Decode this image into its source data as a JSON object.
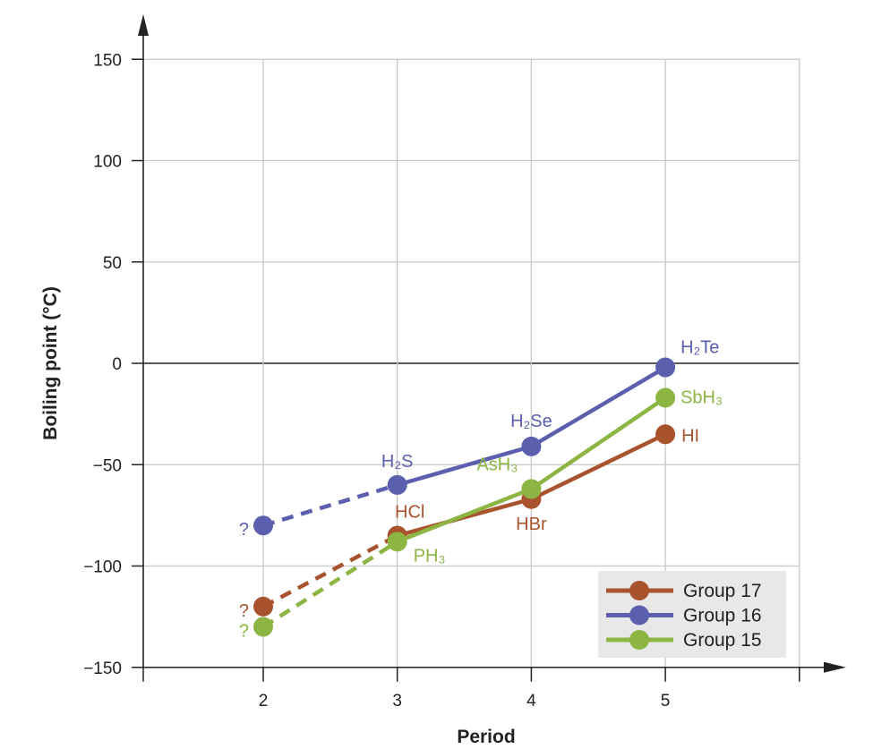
{
  "chart_data": {
    "type": "line",
    "xlabel": "Period",
    "ylabel": "Boiling point (°C)",
    "xlim": [
      1.1,
      6
    ],
    "ylim": [
      -150,
      150
    ],
    "x_ticks": [
      2,
      3,
      4,
      5
    ],
    "y_ticks": [
      150,
      100,
      50,
      0,
      -50,
      -100,
      -150
    ],
    "y_tick_labels": [
      "150",
      "100",
      "50",
      "0",
      "−50",
      "−100",
      "−150"
    ],
    "grid": true,
    "legend_position": "bottom-right",
    "dashed_segment": "period 2 to period 3",
    "series": [
      {
        "name": "Group 17",
        "color": "#a9532e",
        "x": [
          2,
          3,
          4,
          5
        ],
        "y": [
          -120,
          -85,
          -67,
          -35
        ],
        "labels": [
          "?",
          "HCl",
          "HBr",
          "HI"
        ]
      },
      {
        "name": "Group 16",
        "color": "#5b5fae",
        "x": [
          2,
          3,
          4,
          5
        ],
        "y": [
          -80,
          -60,
          -41,
          -2
        ],
        "labels": [
          "?",
          "H₂S",
          "H₂Se",
          "H₂Te"
        ]
      },
      {
        "name": "Group 15",
        "color": "#8cb544",
        "x": [
          2,
          3,
          4,
          5
        ],
        "y": [
          -130,
          -88,
          -62,
          -17
        ],
        "labels": [
          "?",
          "PH₃",
          "AsH₃",
          "SbH₃"
        ]
      }
    ]
  }
}
